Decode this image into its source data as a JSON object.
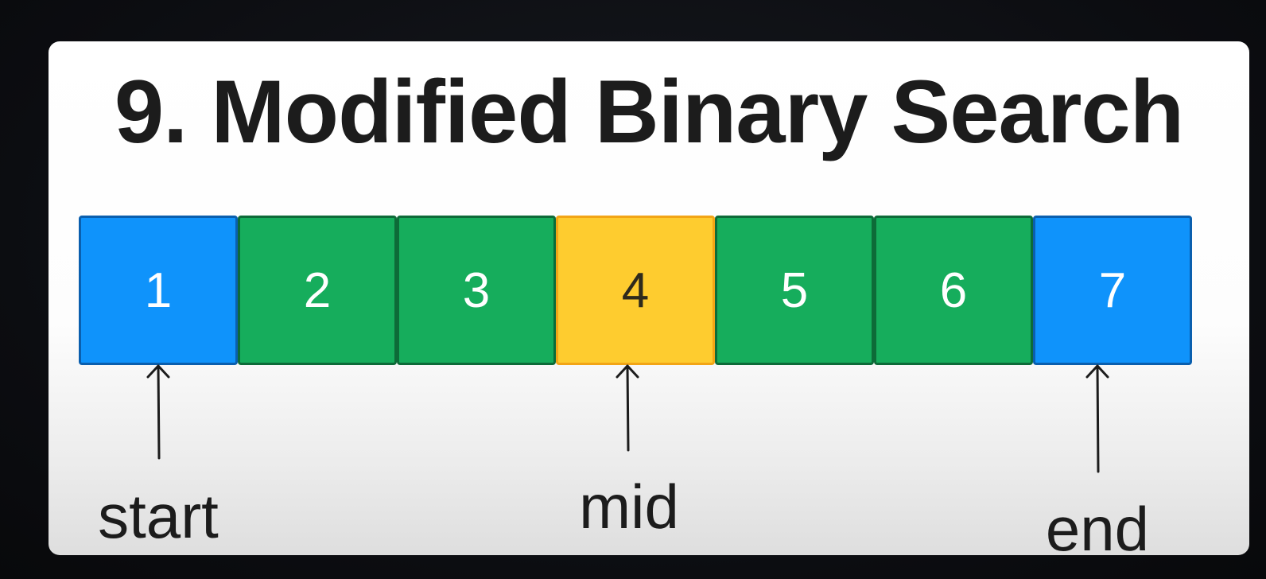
{
  "title": "9. Modified Binary Search",
  "array": {
    "cells": [
      {
        "value": "1",
        "color": "#0f93fb",
        "role": "start"
      },
      {
        "value": "2",
        "color": "#16ad5c",
        "role": "range"
      },
      {
        "value": "3",
        "color": "#16ad5c",
        "role": "range"
      },
      {
        "value": "4",
        "color": "#fecc2f",
        "role": "mid"
      },
      {
        "value": "5",
        "color": "#16ad5c",
        "role": "range"
      },
      {
        "value": "6",
        "color": "#16ad5c",
        "role": "range"
      },
      {
        "value": "7",
        "color": "#0f93fb",
        "role": "end"
      }
    ]
  },
  "pointers": {
    "start": "start",
    "mid": "mid",
    "end": "end"
  },
  "colors": {
    "endpoint": "#0f93fb",
    "range": "#16ad5c",
    "mid": "#fecc2f",
    "text": "#1c1c1c"
  }
}
